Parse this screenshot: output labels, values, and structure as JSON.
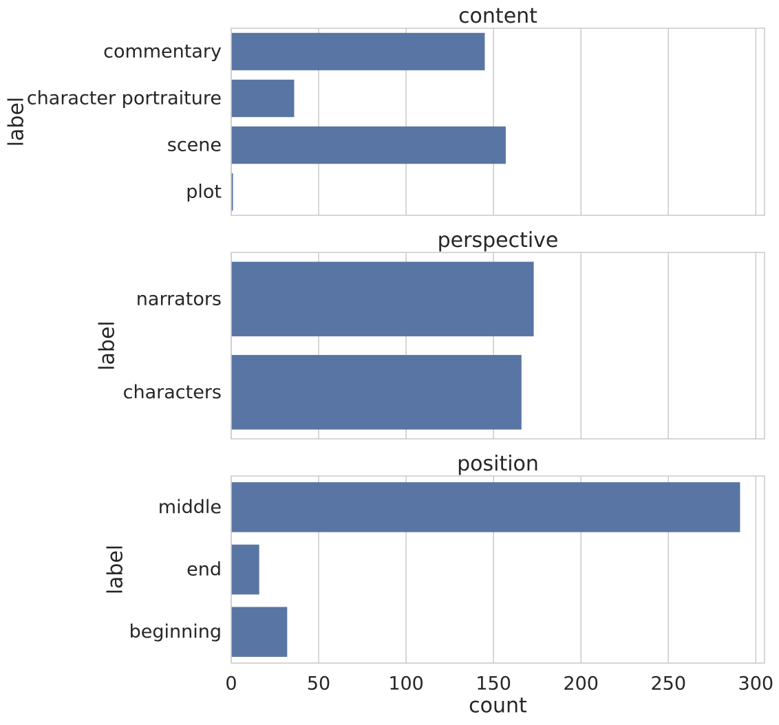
{
  "chart_data": [
    {
      "type": "bar",
      "orientation": "horizontal",
      "title": "content",
      "ylabel": "label",
      "xlabel": "",
      "categories": [
        "commentary",
        "character portraiture",
        "scene",
        "plot"
      ],
      "values": [
        145,
        36,
        157,
        1
      ],
      "xlim": [
        0,
        305
      ],
      "grid": "vertical"
    },
    {
      "type": "bar",
      "orientation": "horizontal",
      "title": "perspective",
      "ylabel": "label",
      "xlabel": "",
      "categories": [
        "narrators",
        "characters"
      ],
      "values": [
        173,
        166
      ],
      "xlim": [
        0,
        305
      ],
      "grid": "vertical"
    },
    {
      "type": "bar",
      "orientation": "horizontal",
      "title": "position",
      "ylabel": "label",
      "xlabel": "count",
      "categories": [
        "middle",
        "end",
        "beginning"
      ],
      "values": [
        291,
        16,
        32
      ],
      "xlim": [
        0,
        305
      ],
      "grid": "vertical"
    }
  ],
  "shared_x_ticks": [
    0,
    50,
    100,
    150,
    200,
    250,
    300
  ],
  "colors": {
    "bar": "#5975a4",
    "grid": "#cccccc",
    "spine": "#cccccc",
    "text": "#262626"
  }
}
